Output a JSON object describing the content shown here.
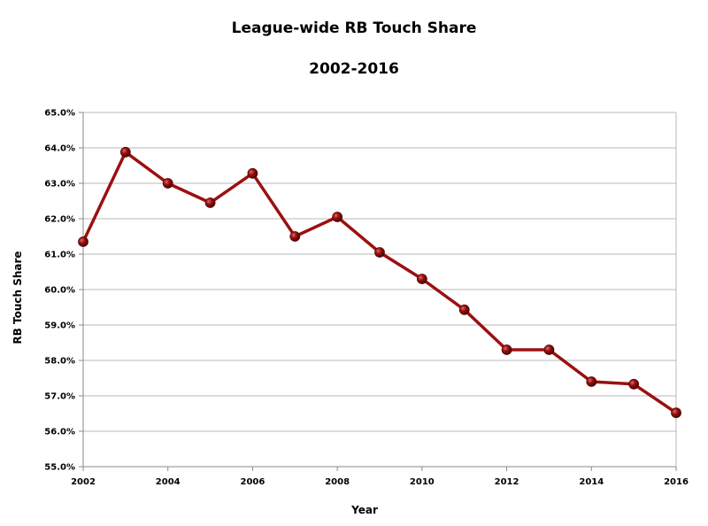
{
  "chart_data": {
    "type": "line",
    "title": "League-wide RB Touch Share",
    "subtitle": "2002-2016",
    "xlabel": "Year",
    "ylabel": "RB Touch Share",
    "xlim": [
      2002,
      2016
    ],
    "ylim": [
      55.0,
      65.0
    ],
    "x_ticks": [
      "2002",
      "2004",
      "2006",
      "2008",
      "2010",
      "2012",
      "2014",
      "2016"
    ],
    "y_ticks": [
      "55.0%",
      "56.0%",
      "57.0%",
      "58.0%",
      "59.0%",
      "60.0%",
      "61.0%",
      "62.0%",
      "63.0%",
      "64.0%",
      "65.0%"
    ],
    "grid": "horizontal",
    "line_color": "#9b1010",
    "series": [
      {
        "x": [
          2002,
          2003,
          2004,
          2005,
          2006,
          2007,
          2008,
          2009,
          2010,
          2011,
          2012,
          2013,
          2014,
          2015,
          2016
        ],
        "values": [
          61.35,
          63.88,
          63.0,
          62.45,
          63.28,
          61.5,
          62.05,
          61.05,
          60.3,
          59.43,
          58.3,
          58.3,
          57.4,
          57.33,
          56.52
        ]
      }
    ]
  }
}
